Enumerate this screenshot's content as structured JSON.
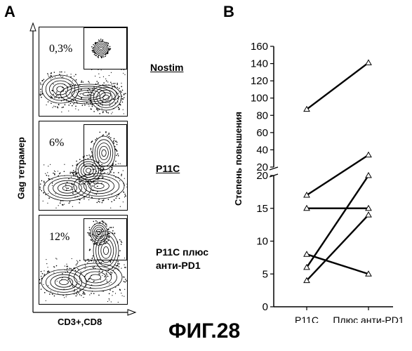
{
  "panelA": {
    "letter": "A",
    "y_label": "Gag тетрамер",
    "x_label": "CD3+,CD8",
    "plots": [
      {
        "percent": "0,3%",
        "condition": "Nostim",
        "underlined": true
      },
      {
        "percent": "6%",
        "condition": "P11C",
        "underlined": true
      },
      {
        "percent": "12%",
        "condition_line1": "P11C плюс",
        "condition_line2": "анти-PD1",
        "underlined": false
      }
    ]
  },
  "panelB": {
    "letter": "B"
  },
  "caption": "ФИГ.28",
  "chart_data": {
    "type": "line",
    "ylabel": "Степень повышения",
    "xlabel": "",
    "categories": [
      "P11C",
      "Плюс анти-PD1"
    ],
    "y_axis_break": true,
    "lower_segment": {
      "ylim": [
        0,
        20
      ],
      "ticks": [
        0,
        5,
        10,
        15,
        20
      ]
    },
    "upper_segment": {
      "ylim": [
        20,
        160
      ],
      "ticks": [
        20,
        40,
        60,
        80,
        100,
        120,
        140,
        160
      ]
    },
    "series": [
      {
        "values": [
          87,
          141
        ]
      },
      {
        "values": [
          17,
          34
        ]
      },
      {
        "values": [
          15,
          15
        ]
      },
      {
        "values": [
          8,
          5
        ]
      },
      {
        "values": [
          6,
          20
        ]
      },
      {
        "values": [
          4,
          14
        ]
      }
    ],
    "marker": "triangle-open",
    "colors": {
      "line": "#000000",
      "marker_fill": "#ffffff"
    }
  }
}
